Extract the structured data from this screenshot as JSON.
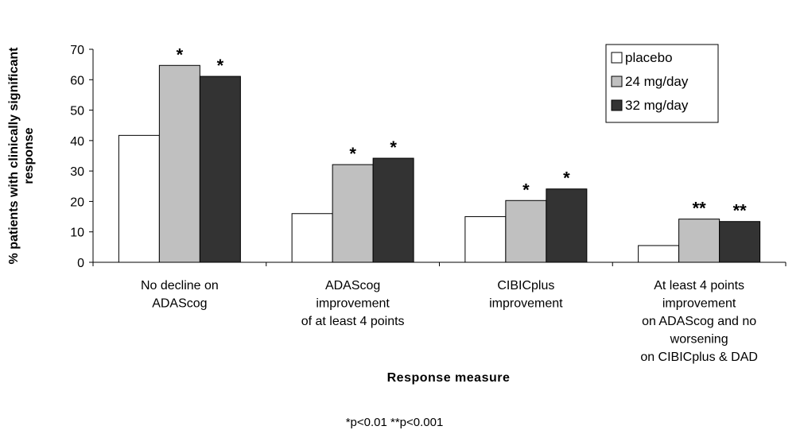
{
  "chart_data": {
    "type": "bar",
    "categories": [
      [
        "No decline on",
        "ADAScog"
      ],
      [
        "ADAScog",
        "improvement",
        "of at least 4 points"
      ],
      [
        "CIBICplus",
        "improvement"
      ],
      [
        "At least 4 points",
        "improvement",
        "on ADAScog and no",
        "worsening",
        "on CIBICplus & DAD"
      ]
    ],
    "series": [
      {
        "name": "placebo",
        "color": "#ffffff",
        "values": [
          41.7,
          16.0,
          15.0,
          5.5
        ]
      },
      {
        "name": "24 mg/day",
        "color": "#c0c0c0",
        "values": [
          64.7,
          32.1,
          20.3,
          14.2
        ]
      },
      {
        "name": "32 mg/day",
        "color": "#333333",
        "values": [
          61.1,
          34.2,
          24.1,
          13.4
        ]
      }
    ],
    "significance": [
      [
        "",
        "*",
        "*"
      ],
      [
        "",
        "*",
        "*"
      ],
      [
        "",
        "*",
        "*"
      ],
      [
        "",
        "**",
        "**"
      ]
    ],
    "ylabel_lines": [
      "% patients with clinically significant",
      "response"
    ],
    "xlabel": "Response measure",
    "footnote": "*p<0.01 **p<0.001",
    "yticks": [
      0,
      10,
      20,
      30,
      40,
      50,
      60,
      70
    ],
    "ylim": [
      0,
      70
    ],
    "grid": false,
    "legend_position": "top-right"
  }
}
